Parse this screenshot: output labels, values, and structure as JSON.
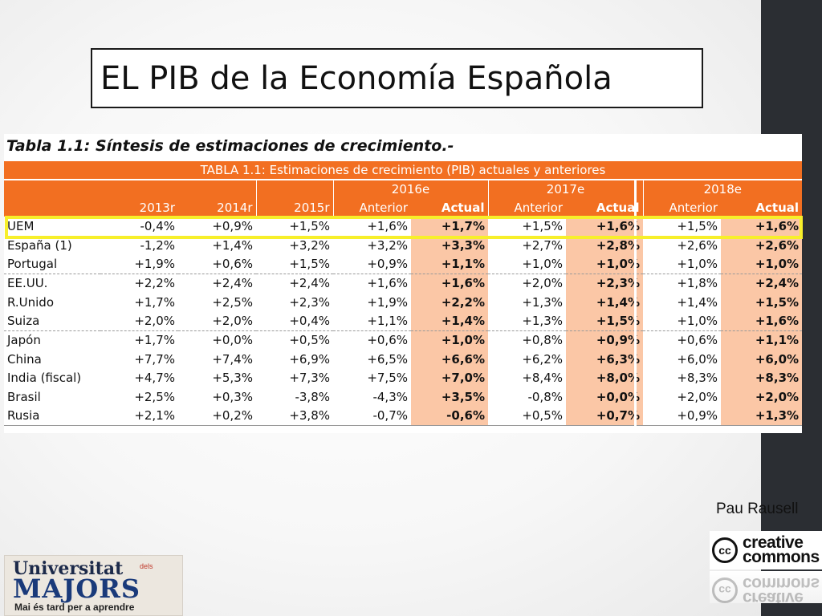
{
  "slide": {
    "title": "EL PIB de la Economía Española",
    "author": "Pau Rausell"
  },
  "table": {
    "caption": "Tabla 1.1: Síntesis de estimaciones de crecimiento.-",
    "header_title": "TABLA 1.1: Estimaciones de crecimiento (PIB) actuales y anteriores",
    "group_headers": [
      "2016e",
      "2017e",
      "2018e"
    ],
    "column_headers": [
      "2013r",
      "2014r",
      "2015r",
      "Anterior",
      "Actual",
      "Anterior",
      "Actual",
      "Anterior",
      "Actual"
    ],
    "highlighted_row": "UEM",
    "rows": [
      {
        "label": "UEM",
        "values": [
          "-0,4%",
          "+0,9%",
          "+1,5%",
          "+1,6%",
          "+1,7%",
          "+1,5%",
          "+1,6%",
          "+1,5%",
          "+1,6%"
        ]
      },
      {
        "label": "España (1)",
        "values": [
          "-1,2%",
          "+1,4%",
          "+3,2%",
          "+3,2%",
          "+3,3%",
          "+2,7%",
          "+2,8%",
          "+2,6%",
          "+2,6%"
        ]
      },
      {
        "label": "Portugal",
        "values": [
          "+1,9%",
          "+0,6%",
          "+1,5%",
          "+0,9%",
          "+1,1%",
          "+1,0%",
          "+1,0%",
          "+1,0%",
          "+1,0%"
        ]
      },
      {
        "label": "EE.UU.",
        "values": [
          "+2,2%",
          "+2,4%",
          "+2,4%",
          "+1,6%",
          "+1,6%",
          "+2,0%",
          "+2,3%",
          "+1,8%",
          "+2,4%"
        ]
      },
      {
        "label": "R.Unido",
        "values": [
          "+1,7%",
          "+2,5%",
          "+2,3%",
          "+1,9%",
          "+2,2%",
          "+1,3%",
          "+1,4%",
          "+1,4%",
          "+1,5%"
        ]
      },
      {
        "label": "Suiza",
        "values": [
          "+2,0%",
          "+2,0%",
          "+0,4%",
          "+1,1%",
          "+1,4%",
          "+1,3%",
          "+1,5%",
          "+1,0%",
          "+1,6%"
        ]
      },
      {
        "label": "Japón",
        "values": [
          "+1,7%",
          "+0,0%",
          "+0,5%",
          "+0,6%",
          "+1,0%",
          "+0,8%",
          "+0,9%",
          "+0,6%",
          "+1,1%"
        ]
      },
      {
        "label": "China",
        "values": [
          "+7,7%",
          "+7,4%",
          "+6,9%",
          "+6,5%",
          "+6,6%",
          "+6,2%",
          "+6,3%",
          "+6,0%",
          "+6,0%"
        ]
      },
      {
        "label": "India (fiscal)",
        "values": [
          "+4,7%",
          "+5,3%",
          "+7,3%",
          "+7,5%",
          "+7,0%",
          "+8,4%",
          "+8,0%",
          "+8,3%",
          "+8,3%"
        ]
      },
      {
        "label": "Brasil",
        "values": [
          "+2,5%",
          "+0,3%",
          "-3,8%",
          "-4,3%",
          "+3,5%",
          "-0,8%",
          "+0,0%",
          "+2,0%",
          "+2,0%"
        ]
      },
      {
        "label": "Rusia",
        "values": [
          "+2,1%",
          "+0,2%",
          "+3,8%",
          "-0,7%",
          "-0,6%",
          "+0,5%",
          "+0,7%",
          "+0,9%",
          "+1,3%"
        ]
      }
    ]
  },
  "cc_logo": {
    "cc": "cc",
    "line1": "creative",
    "line2": "commons"
  },
  "university_logo": {
    "line1": "Universitat",
    "dels": "dels",
    "line2": "MAJORS",
    "tagline": "Mai és tard per a aprendre"
  },
  "colors": {
    "header_orange": "#f26f21",
    "actual_col": "#fbc7a6",
    "highlight": "#f7ef2a",
    "side_bar": "#2b2e33"
  }
}
